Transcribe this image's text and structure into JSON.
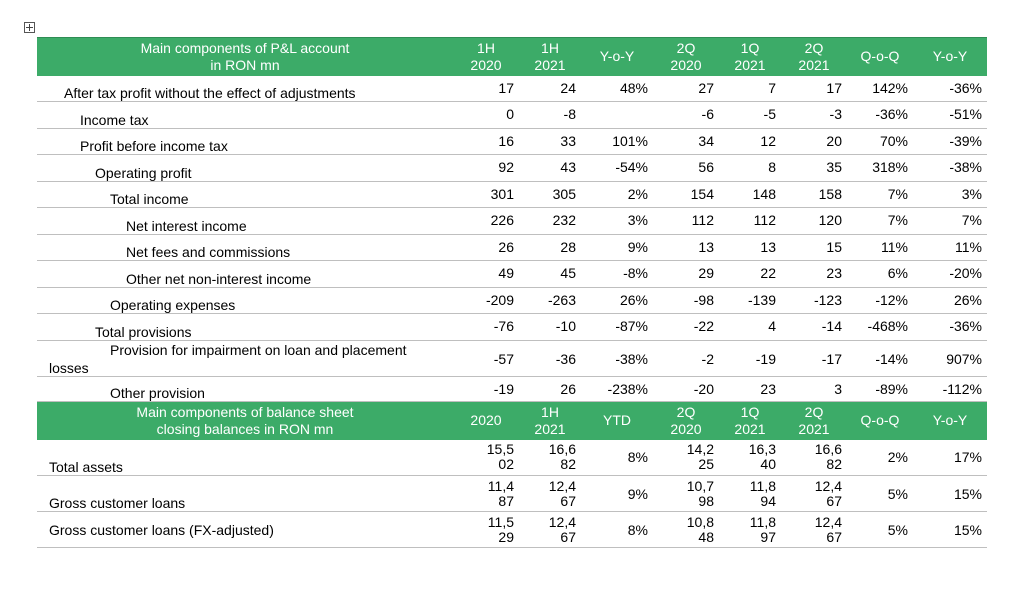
{
  "pl": {
    "header": [
      "Main components of P&L account\nin RON mn",
      "1H\n2020",
      "1H\n2021",
      "Y-o-Y",
      "2Q\n2020",
      "1Q\n2021",
      "2Q\n2021",
      "Q-o-Q",
      "Y-o-Y"
    ],
    "rows": [
      {
        "label": "After tax profit without the effect of adjustments",
        "values": [
          "17",
          "24",
          "48%",
          "27",
          "7",
          "17",
          "142%",
          "-36%"
        ]
      },
      {
        "label": "Income tax",
        "values": [
          "0",
          "-8",
          "",
          "-6",
          "-5",
          "-3",
          "-36%",
          "-51%"
        ]
      },
      {
        "label": "Profit before income tax",
        "values": [
          "16",
          "33",
          "101%",
          "34",
          "12",
          "20",
          "70%",
          "-39%"
        ]
      },
      {
        "label": "Operating profit",
        "values": [
          "92",
          "43",
          "-54%",
          "56",
          "8",
          "35",
          "318%",
          "-38%"
        ]
      },
      {
        "label": "Total income",
        "values": [
          "301",
          "305",
          "2%",
          "154",
          "148",
          "158",
          "7%",
          "3%"
        ]
      },
      {
        "label": "Net interest income",
        "values": [
          "226",
          "232",
          "3%",
          "112",
          "112",
          "120",
          "7%",
          "7%"
        ]
      },
      {
        "label": "Net fees and commissions",
        "values": [
          "26",
          "28",
          "9%",
          "13",
          "13",
          "15",
          "11%",
          "11%"
        ]
      },
      {
        "label": "Other net non-interest income",
        "values": [
          "49",
          "45",
          "-8%",
          "29",
          "22",
          "23",
          "6%",
          "-20%"
        ]
      },
      {
        "label": "Operating expenses",
        "values": [
          "-209",
          "-263",
          "26%",
          "-98",
          "-139",
          "-123",
          "-12%",
          "26%"
        ]
      },
      {
        "label": "Total provisions",
        "values": [
          "-76",
          "-10",
          "-87%",
          "-22",
          "4",
          "-14",
          "-468%",
          "-36%"
        ]
      },
      {
        "label": "Provision for impairment on loan and placement",
        "label_cont": "losses",
        "values": [
          "-57",
          "-36",
          "-38%",
          "-2",
          "-19",
          "-17",
          "-14%",
          "907%"
        ]
      },
      {
        "label": "Other provision",
        "values": [
          "-19",
          "26",
          "-238%",
          "-20",
          "23",
          "3",
          "-89%",
          "-112%"
        ]
      }
    ]
  },
  "bs": {
    "header": [
      "Main components of balance sheet\nclosing balances in RON mn",
      "2020",
      "1H\n2021",
      "YTD",
      "2Q\n2020",
      "1Q\n2021",
      "2Q\n2021",
      "Q-o-Q",
      "Y-o-Y"
    ],
    "rows": [
      {
        "label": "Total assets",
        "values": [
          "15,502",
          "16,682",
          "8%",
          "14,225",
          "16,340",
          "16,682",
          "2%",
          "17%"
        ]
      },
      {
        "label": "Gross customer loans",
        "values": [
          "11,487",
          "12,467",
          "9%",
          "10,798",
          "11,894",
          "12,467",
          "5%",
          "15%"
        ]
      },
      {
        "label": "Gross customer loans (FX-adjusted)",
        "values": [
          "11,529",
          "12,467",
          "8%",
          "10,848",
          "11,897",
          "12,467",
          "5%",
          "15%"
        ]
      }
    ]
  }
}
